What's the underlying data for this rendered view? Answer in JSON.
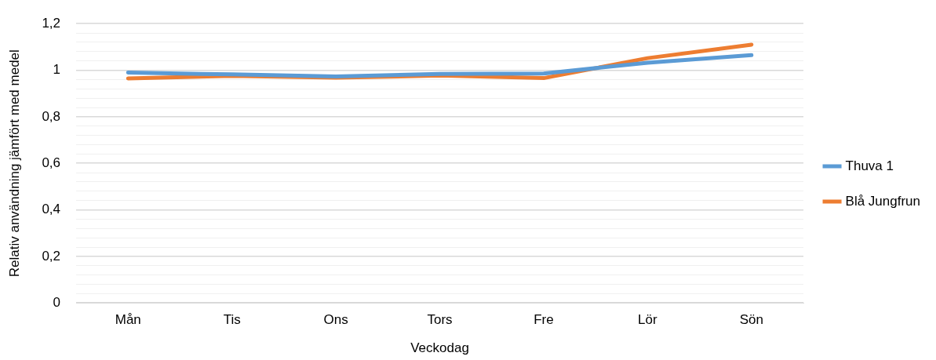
{
  "chart_data": {
    "type": "line",
    "xlabel": "Veckodag",
    "ylabel": "Relativ användning jämfört med medel",
    "categories": [
      "Mån",
      "Tis",
      "Ons",
      "Tors",
      "Fre",
      "Lör",
      "Sön"
    ],
    "series": [
      {
        "name": "Thuva 1",
        "color": "#5b9bd5",
        "values": [
          0.99,
          0.982,
          0.973,
          0.984,
          0.986,
          1.032,
          1.065
        ]
      },
      {
        "name": "Blå Jungfrun",
        "color": "#ed7d31",
        "values": [
          0.965,
          0.976,
          0.968,
          0.977,
          0.966,
          1.052,
          1.11
        ]
      }
    ],
    "ylim": [
      0,
      1.2
    ],
    "yticks": [
      0,
      {
        "value": 0.04,
        "label": null
      },
      {
        "value": 0.08,
        "label": null
      },
      {
        "value": 0.12,
        "label": null
      },
      {
        "value": 0.16,
        "label": null
      },
      {
        "value": 0.2,
        "label": "0,2"
      },
      {
        "value": 0.24,
        "label": null
      },
      {
        "value": 0.28,
        "label": null
      },
      {
        "value": 0.32,
        "label": null
      },
      {
        "value": 0.36,
        "label": null
      },
      {
        "value": 0.4,
        "label": "0,4"
      },
      {
        "value": 0.44,
        "label": null
      },
      {
        "value": 0.48,
        "label": null
      },
      {
        "value": 0.52,
        "label": null
      },
      {
        "value": 0.56,
        "label": null
      },
      {
        "value": 0.6,
        "label": "0,6"
      },
      {
        "value": 0.64,
        "label": null
      },
      {
        "value": 0.68,
        "label": null
      },
      {
        "value": 0.72,
        "label": null
      },
      {
        "value": 0.76,
        "label": null
      },
      {
        "value": 0.8,
        "label": "0,8"
      },
      {
        "value": 0.84,
        "label": null
      },
      {
        "value": 0.88,
        "label": null
      },
      {
        "value": 0.92,
        "label": null
      },
      {
        "value": 0.96,
        "label": null
      },
      1,
      {
        "value": 1.04,
        "label": null
      },
      {
        "value": 1.08,
        "label": null
      },
      {
        "value": 1.12,
        "label": null
      },
      {
        "value": 1.16,
        "label": null
      },
      {
        "value": 1.2,
        "label": "1,2"
      }
    ],
    "grid": "y",
    "legend": "right",
    "marker": "none",
    "line_style": "solid"
  }
}
